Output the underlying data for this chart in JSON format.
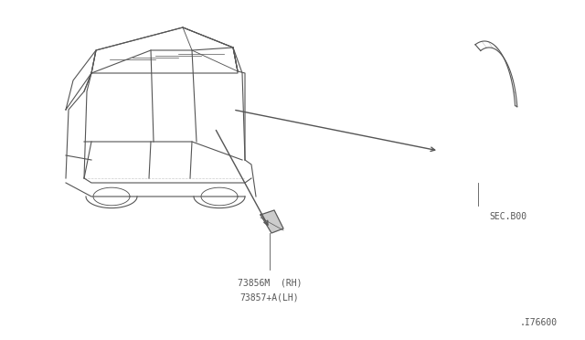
{
  "bg_color": "#ffffff",
  "line_color": "#555555",
  "text_color": "#555555",
  "part_label_1_line1": "73856M  (RH)",
  "part_label_1_line2": "73857+A(LH)",
  "part_label_2": "SEC.B00",
  "diagram_id": ".I76600",
  "title_fontsize": 7,
  "annotation_fontsize": 7
}
